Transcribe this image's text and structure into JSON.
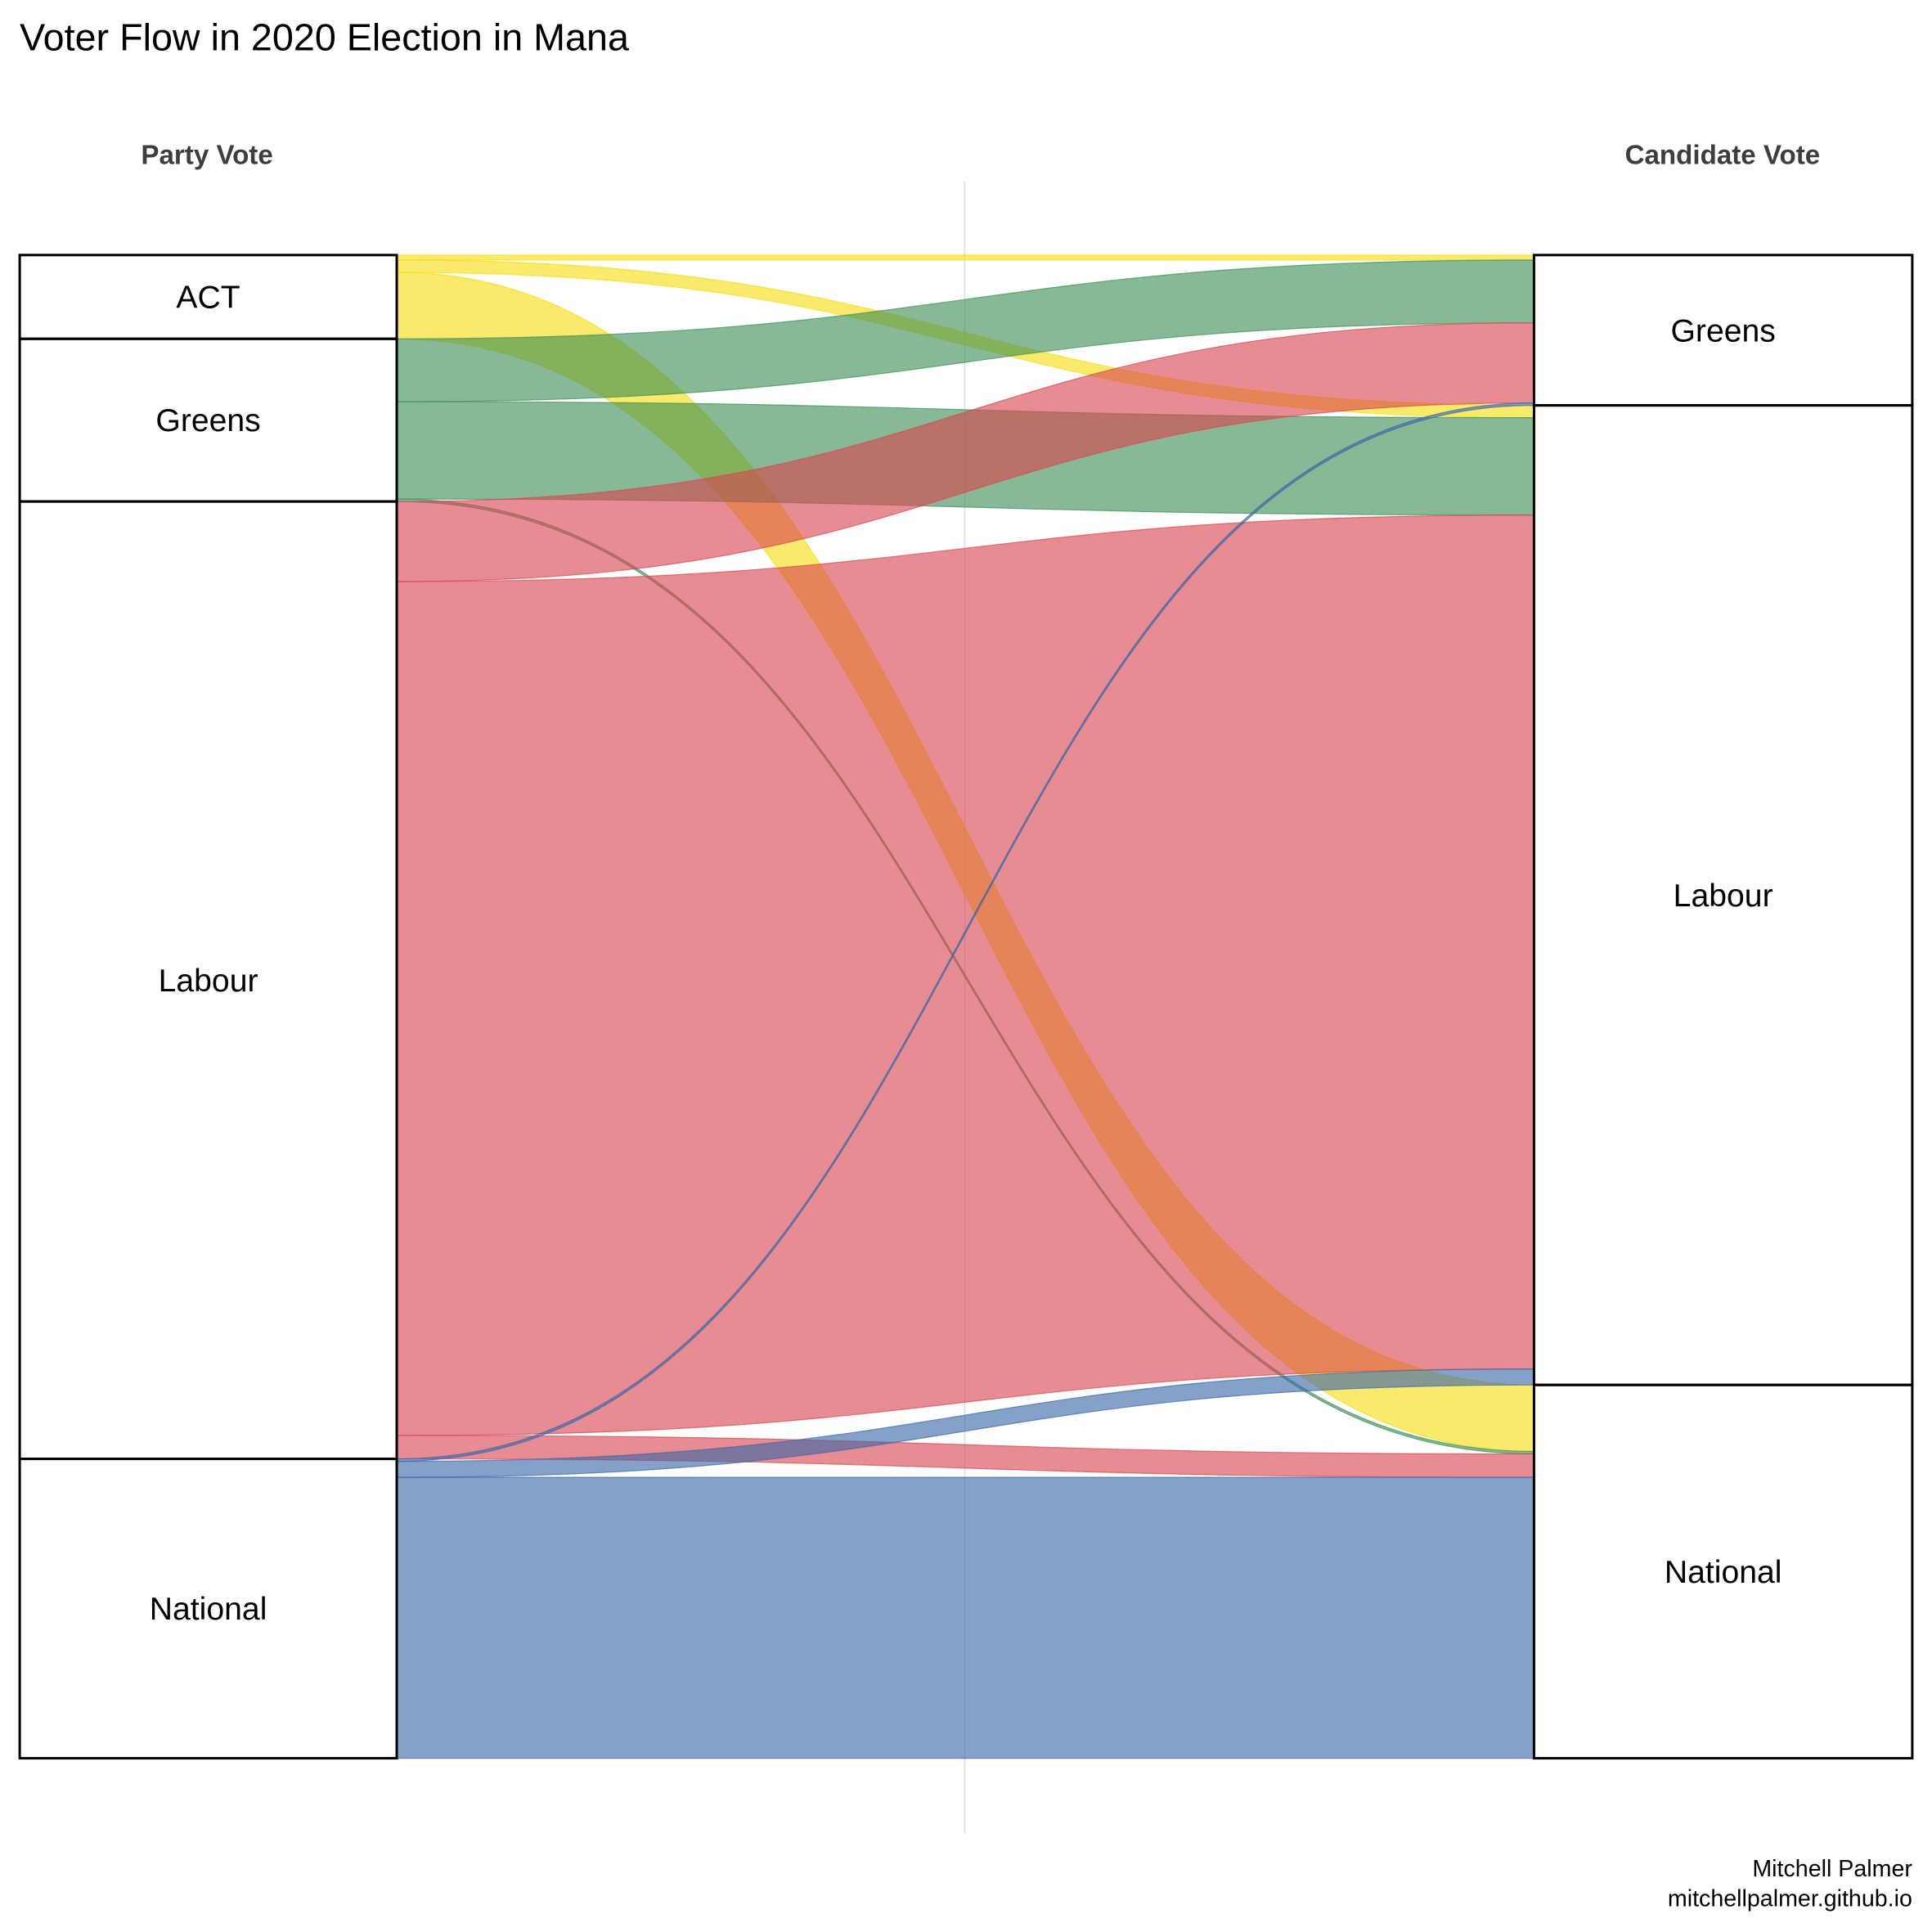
{
  "chart_data": {
    "type": "alluvial",
    "title": "Voter Flow in 2020 Election in Mana",
    "axes": [
      "Party Vote",
      "Candidate Vote"
    ],
    "left_strata": [
      "ACT",
      "Greens",
      "Labour",
      "National"
    ],
    "right_strata": [
      "Greens",
      "Labour",
      "National"
    ],
    "colors": {
      "ACT": "#f5dd10",
      "Greens": "#3d8e55",
      "Labour": "#d8464f",
      "National": "#3b67a7"
    },
    "flows": [
      {
        "from": "ACT",
        "to": "Greens",
        "value": 4
      },
      {
        "from": "ACT",
        "to": "Labour",
        "value": 10
      },
      {
        "from": "ACT",
        "to": "National",
        "value": 54
      },
      {
        "from": "Greens",
        "to": "Greens",
        "value": 51
      },
      {
        "from": "Greens",
        "to": "Labour",
        "value": 79
      },
      {
        "from": "Greens",
        "to": "National",
        "value": 2
      },
      {
        "from": "Labour",
        "to": "Greens",
        "value": 65
      },
      {
        "from": "Labour",
        "to": "Labour",
        "value": 693
      },
      {
        "from": "Labour",
        "to": "National",
        "value": 19
      },
      {
        "from": "National",
        "to": "Greens",
        "value": 2
      },
      {
        "from": "National",
        "to": "Labour",
        "value": 13
      },
      {
        "from": "National",
        "to": "National",
        "value": 228
      }
    ]
  },
  "caption": {
    "author": "Mitchell Palmer",
    "site": "mitchellpalmer.github.io"
  }
}
